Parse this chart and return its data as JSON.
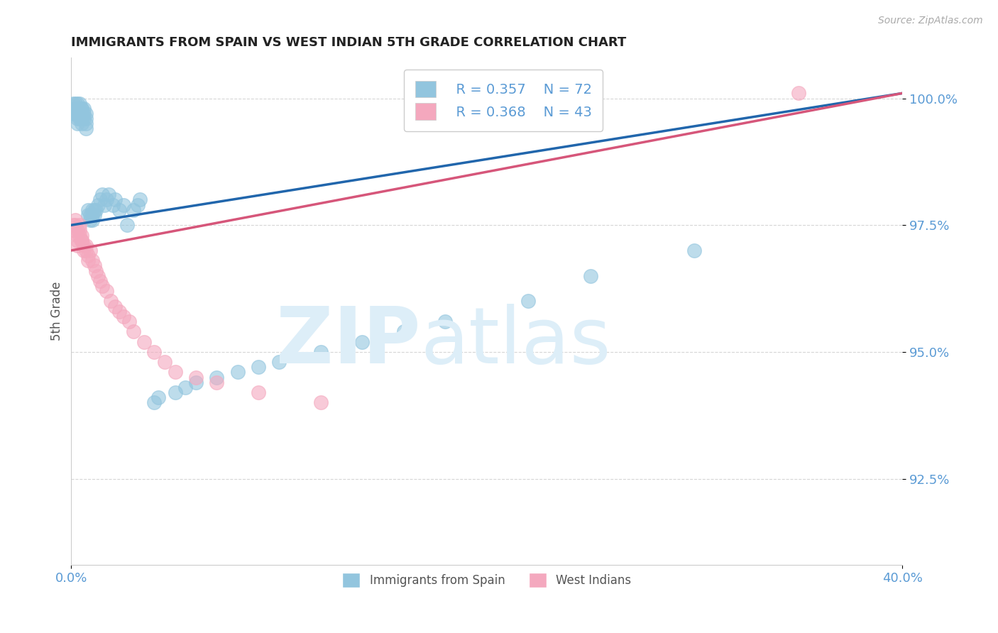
{
  "title": "IMMIGRANTS FROM SPAIN VS WEST INDIAN 5TH GRADE CORRELATION CHART",
  "source_text": "Source: ZipAtlas.com",
  "ylabel": "5th Grade",
  "xlim": [
    0.0,
    0.4
  ],
  "ylim": [
    0.908,
    1.008
  ],
  "yticks": [
    0.925,
    0.95,
    0.975,
    1.0
  ],
  "yticklabels": [
    "92.5%",
    "95.0%",
    "97.5%",
    "100.0%"
  ],
  "legend_r1": "R = 0.357",
  "legend_n1": "N = 72",
  "legend_r2": "R = 0.368",
  "legend_n2": "N = 43",
  "color_spain": "#92c5de",
  "color_westindian": "#f4a8be",
  "color_trendline_spain": "#2166ac",
  "color_trendline_westindian": "#d6567a",
  "color_axis_text": "#5b9bd5",
  "watermark_color": "#ddeef8",
  "background_color": "#ffffff",
  "grid_color": "#cccccc",
  "spain_x": [
    0.001,
    0.001,
    0.002,
    0.002,
    0.002,
    0.002,
    0.002,
    0.003,
    0.003,
    0.003,
    0.003,
    0.003,
    0.003,
    0.003,
    0.004,
    0.004,
    0.004,
    0.004,
    0.004,
    0.005,
    0.005,
    0.005,
    0.005,
    0.005,
    0.005,
    0.006,
    0.006,
    0.006,
    0.007,
    0.007,
    0.007,
    0.007,
    0.008,
    0.008,
    0.009,
    0.009,
    0.01,
    0.01,
    0.01,
    0.011,
    0.011,
    0.012,
    0.013,
    0.014,
    0.015,
    0.016,
    0.017,
    0.018,
    0.02,
    0.021,
    0.023,
    0.025,
    0.027,
    0.03,
    0.032,
    0.033,
    0.04,
    0.042,
    0.05,
    0.055,
    0.06,
    0.07,
    0.08,
    0.09,
    0.1,
    0.12,
    0.14,
    0.16,
    0.18,
    0.22,
    0.25,
    0.3
  ],
  "spain_y": [
    0.997,
    0.999,
    0.998,
    0.997,
    0.999,
    0.998,
    0.997,
    0.998,
    0.997,
    0.996,
    0.995,
    0.998,
    0.997,
    0.999,
    0.998,
    0.997,
    0.996,
    0.999,
    0.997,
    0.998,
    0.997,
    0.996,
    0.995,
    0.998,
    0.996,
    0.998,
    0.997,
    0.996,
    0.997,
    0.996,
    0.995,
    0.994,
    0.978,
    0.977,
    0.976,
    0.977,
    0.978,
    0.977,
    0.976,
    0.978,
    0.977,
    0.978,
    0.979,
    0.98,
    0.981,
    0.979,
    0.98,
    0.981,
    0.979,
    0.98,
    0.978,
    0.979,
    0.975,
    0.978,
    0.979,
    0.98,
    0.94,
    0.941,
    0.942,
    0.943,
    0.944,
    0.945,
    0.946,
    0.947,
    0.948,
    0.95,
    0.952,
    0.954,
    0.956,
    0.96,
    0.965,
    0.97
  ],
  "westindian_x": [
    0.001,
    0.001,
    0.002,
    0.002,
    0.003,
    0.003,
    0.003,
    0.003,
    0.004,
    0.004,
    0.004,
    0.005,
    0.005,
    0.005,
    0.006,
    0.006,
    0.007,
    0.007,
    0.008,
    0.008,
    0.009,
    0.01,
    0.011,
    0.012,
    0.013,
    0.014,
    0.015,
    0.017,
    0.019,
    0.021,
    0.023,
    0.025,
    0.028,
    0.03,
    0.035,
    0.04,
    0.045,
    0.05,
    0.06,
    0.07,
    0.09,
    0.12,
    0.35
  ],
  "westindian_y": [
    0.975,
    0.974,
    0.976,
    0.975,
    0.974,
    0.973,
    0.972,
    0.971,
    0.975,
    0.974,
    0.973,
    0.972,
    0.973,
    0.972,
    0.971,
    0.97,
    0.971,
    0.97,
    0.969,
    0.968,
    0.97,
    0.968,
    0.967,
    0.966,
    0.965,
    0.964,
    0.963,
    0.962,
    0.96,
    0.959,
    0.958,
    0.957,
    0.956,
    0.954,
    0.952,
    0.95,
    0.948,
    0.946,
    0.945,
    0.944,
    0.942,
    0.94,
    1.001
  ],
  "trendline_spain_x0": 0.0,
  "trendline_spain_y0": 0.975,
  "trendline_spain_x1": 0.4,
  "trendline_spain_y1": 1.001,
  "trendline_wi_x0": 0.0,
  "trendline_wi_y0": 0.97,
  "trendline_wi_x1": 0.4,
  "trendline_wi_y1": 1.001
}
